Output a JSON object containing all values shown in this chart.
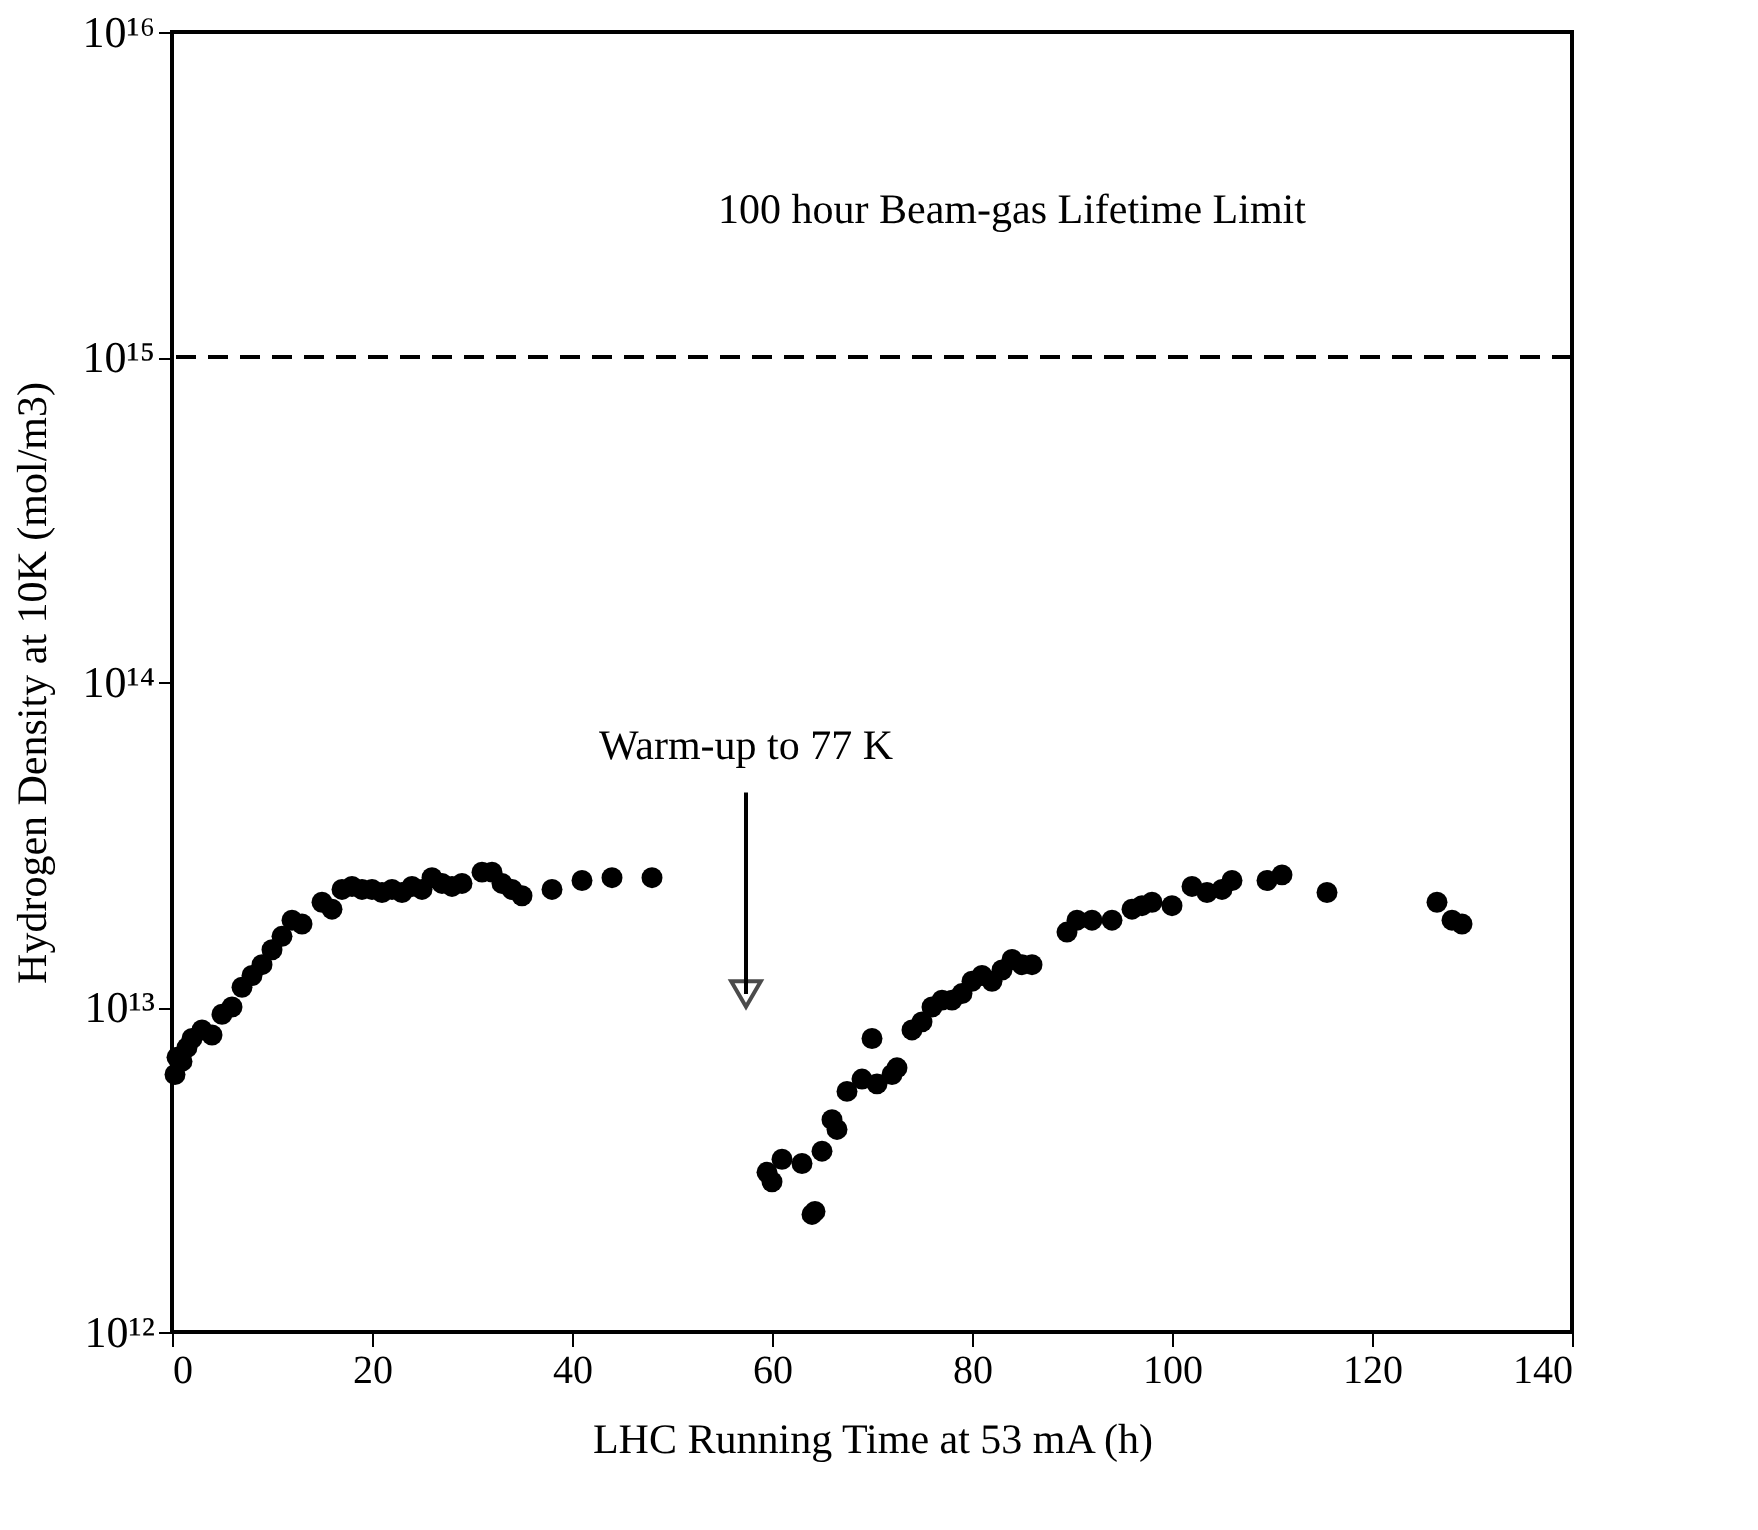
{
  "chart_data": {
    "type": "scatter",
    "xlabel": "LHC Running Time at 53 mA (h)",
    "ylabel": "Hydrogen Density at 10K (mol/m3)",
    "log": "y",
    "marker": "circle",
    "grid": false,
    "xlim": [
      0,
      140
    ],
    "xticks": [
      0,
      20,
      40,
      60,
      80,
      100,
      120,
      140
    ],
    "ylim": [
      1000000000000.0,
      1e+16
    ],
    "yticks": [
      {
        "value": 1000000000000.0,
        "label": "10¹²"
      },
      {
        "value": 10000000000000.0,
        "label": "10¹³"
      },
      {
        "value": 100000000000000.0,
        "label": "10¹⁴"
      },
      {
        "value": 1000000000000000.0,
        "label": "10¹⁵"
      },
      {
        "value": 1e+16,
        "label": "10¹⁶"
      }
    ],
    "ref_lines": [
      {
        "axis": "y",
        "value": 1000000000000000.0,
        "label": "100 hour Beam-gas Lifetime Limit",
        "line_style": "dashed",
        "color": "#000000"
      }
    ],
    "annotations": [
      "Warm-up to 77 K"
    ],
    "series": [
      {
        "color": "#000000",
        "x": [
          0.3,
          0.5,
          1,
          1.5,
          2,
          3,
          4,
          5,
          6,
          7,
          8,
          9,
          10,
          11,
          12,
          13,
          15,
          16,
          17,
          18,
          19,
          20,
          21,
          22,
          23,
          24,
          25,
          26,
          27,
          28,
          29,
          31,
          32,
          33,
          34,
          35,
          38,
          41,
          44,
          48,
          59.5,
          60,
          61,
          63,
          64,
          64.3,
          65,
          66,
          66.5,
          67.5,
          69,
          70,
          70.5,
          72,
          72.5,
          74,
          75,
          76,
          77,
          78,
          79,
          80,
          81,
          82,
          83,
          84,
          85,
          86,
          89.5,
          90.5,
          92,
          94,
          96,
          97,
          98,
          100,
          102,
          103.5,
          105,
          106,
          109.5,
          111,
          115.5,
          126.5,
          128,
          129
        ],
        "values": [
          6200000000000.0,
          7000000000000.0,
          6800000000000.0,
          7500000000000.0,
          8000000000000.0,
          8500000000000.0,
          8200000000000.0,
          9500000000000.0,
          10000000000000.0,
          11500000000000.0,
          12500000000000.0,
          13500000000000.0,
          15000000000000.0,
          16500000000000.0,
          18500000000000.0,
          18000000000000.0,
          21000000000000.0,
          20000000000000.0,
          23000000000000.0,
          23500000000000.0,
          23000000000000.0,
          23000000000000.0,
          22500000000000.0,
          23000000000000.0,
          22500000000000.0,
          23500000000000.0,
          23000000000000.0,
          25000000000000.0,
          24000000000000.0,
          23500000000000.0,
          24000000000000.0,
          26000000000000.0,
          26000000000000.0,
          24000000000000.0,
          23000000000000.0,
          22000000000000.0,
          23000000000000.0,
          24500000000000.0,
          25000000000000.0,
          25000000000000.0,
          3100000000000.0,
          2900000000000.0,
          3400000000000.0,
          3300000000000.0,
          2300000000000.0,
          2350000000000.0,
          3600000000000.0,
          4500000000000.0,
          4200000000000.0,
          5500000000000.0,
          6000000000000.0,
          8000000000000.0,
          5800000000000.0,
          6200000000000.0,
          6500000000000.0,
          8500000000000.0,
          9000000000000.0,
          10000000000000.0,
          10500000000000.0,
          10500000000000.0,
          11000000000000.0,
          12000000000000.0,
          12500000000000.0,
          12000000000000.0,
          13000000000000.0,
          14000000000000.0,
          13500000000000.0,
          13500000000000.0,
          17000000000000.0,
          18500000000000.0,
          18500000000000.0,
          18500000000000.0,
          20000000000000.0,
          20500000000000.0,
          21000000000000.0,
          20500000000000.0,
          23500000000000.0,
          22500000000000.0,
          23000000000000.0,
          24500000000000.0,
          24500000000000.0,
          25500000000000.0,
          22500000000000.0,
          21000000000000.0,
          18500000000000.0,
          18000000000000.0
        ]
      }
    ]
  }
}
